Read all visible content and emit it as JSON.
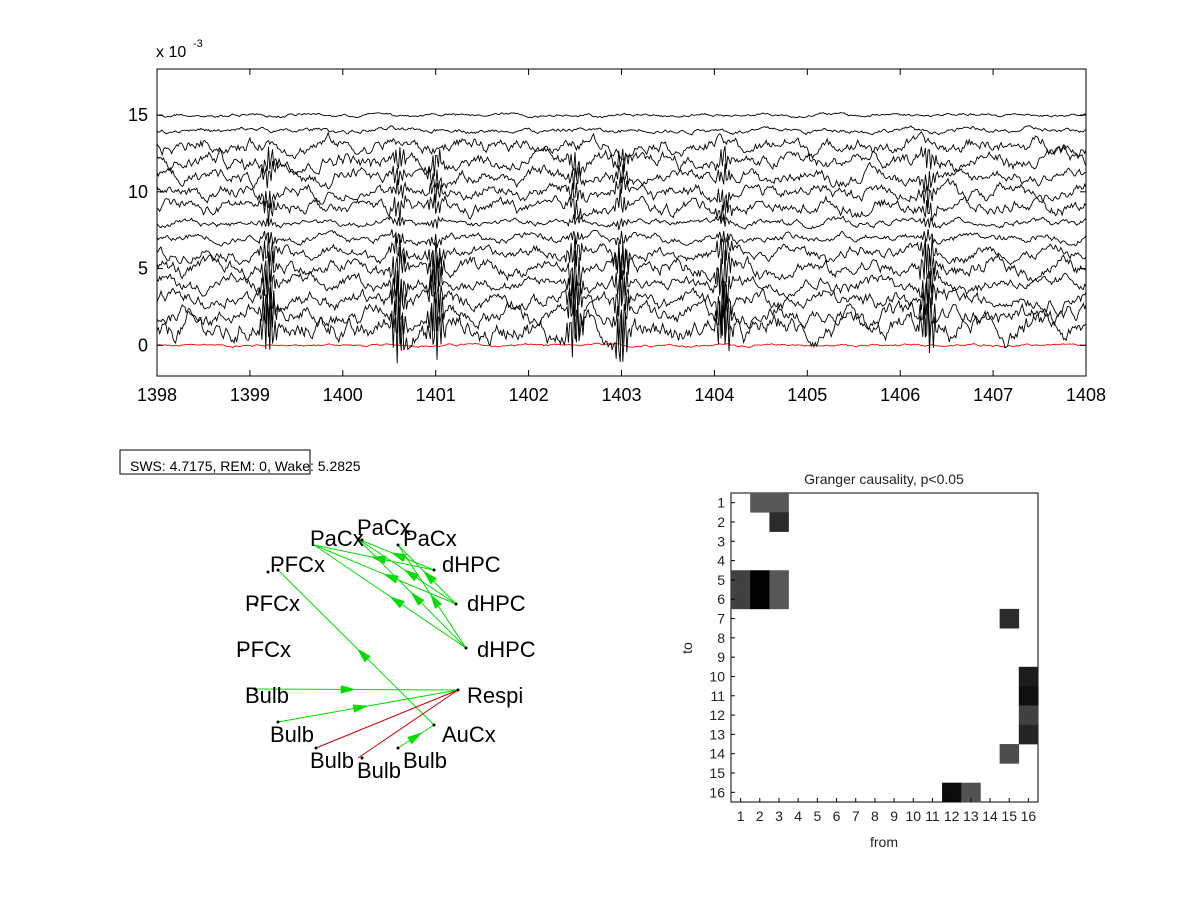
{
  "chart_data": [
    {
      "type": "line",
      "exponent_label": "x 10",
      "exponent_value": "-3",
      "xlim": [
        1398,
        1408
      ],
      "ylim": [
        -2,
        18
      ],
      "xticks": [
        "1398",
        "1399",
        "1400",
        "1401",
        "1402",
        "1403",
        "1404",
        "1405",
        "1406",
        "1407",
        "1408"
      ],
      "yticks": [
        "0",
        "5",
        "10",
        "15"
      ],
      "trace_color": "#000000",
      "highlight_trace_color": "#ff0000",
      "series": [
        {
          "offset": 0.0,
          "amp": 0.15,
          "color": "red"
        },
        {
          "offset": 1.0,
          "amp": 1.3
        },
        {
          "offset": 2.0,
          "amp": 1.0
        },
        {
          "offset": 3.0,
          "amp": 0.9
        },
        {
          "offset": 4.0,
          "amp": 0.8
        },
        {
          "offset": 5.0,
          "amp": 0.9
        },
        {
          "offset": 6.0,
          "amp": 0.7
        },
        {
          "offset": 7.0,
          "amp": 0.5
        },
        {
          "offset": 8.0,
          "amp": 0.4
        },
        {
          "offset": 9.0,
          "amp": 0.8
        },
        {
          "offset": 10.0,
          "amp": 0.8
        },
        {
          "offset": 11.0,
          "amp": 0.8
        },
        {
          "offset": 12.0,
          "amp": 0.9
        },
        {
          "offset": 13.0,
          "amp": 0.8
        },
        {
          "offset": 14.0,
          "amp": 0.3
        },
        {
          "offset": 15.0,
          "amp": 0.2
        }
      ],
      "burst_times": [
        1399.2,
        1400.6,
        1401.0,
        1402.5,
        1403.0,
        1404.1,
        1406.3
      ]
    },
    {
      "type": "heatmap",
      "title": "Granger causality, p<0.05",
      "xlabel": "from",
      "ylabel": "to",
      "xticks": [
        "1",
        "2",
        "3",
        "4",
        "5",
        "6",
        "7",
        "8",
        "9",
        "10",
        "11",
        "12",
        "13",
        "14",
        "15",
        "16"
      ],
      "yticks": [
        "1",
        "2",
        "3",
        "4",
        "5",
        "6",
        "7",
        "8",
        "9",
        "10",
        "11",
        "12",
        "13",
        "14",
        "15",
        "16"
      ],
      "colorscale": "gray, darker = stronger",
      "cells": [
        {
          "to": 1,
          "from": 2,
          "v": 0.6
        },
        {
          "to": 1,
          "from": 3,
          "v": 0.6
        },
        {
          "to": 2,
          "from": 3,
          "v": 0.8
        },
        {
          "to": 5,
          "from": 1,
          "v": 0.7
        },
        {
          "to": 5,
          "from": 2,
          "v": 1.0
        },
        {
          "to": 5,
          "from": 3,
          "v": 0.6
        },
        {
          "to": 6,
          "from": 1,
          "v": 0.7
        },
        {
          "to": 6,
          "from": 2,
          "v": 1.0
        },
        {
          "to": 6,
          "from": 3,
          "v": 0.6
        },
        {
          "to": 7,
          "from": 15,
          "v": 0.8
        },
        {
          "to": 10,
          "from": 16,
          "v": 0.87
        },
        {
          "to": 11,
          "from": 16,
          "v": 0.93
        },
        {
          "to": 12,
          "from": 16,
          "v": 0.7
        },
        {
          "to": 13,
          "from": 16,
          "v": 0.83
        },
        {
          "to": 14,
          "from": 15,
          "v": 0.65
        },
        {
          "to": 16,
          "from": 12,
          "v": 0.95
        },
        {
          "to": 16,
          "from": 13,
          "v": 0.62
        }
      ]
    },
    {
      "type": "network",
      "nodes": [
        "PaCx",
        "PaCx",
        "PaCx",
        "dHPC",
        "dHPC",
        "dHPC",
        "Respi",
        "AuCx",
        "Bulb",
        "Bulb",
        "Bulb",
        "Bulb",
        "PFCx",
        "PFCx",
        "PFCx"
      ],
      "edge_colors": {
        "green": "#00dd00",
        "red": "#cc0000"
      }
    }
  ],
  "stats_box": {
    "label": "SWS: 4.7175,  REM: 0,  Wake: 5.2825"
  }
}
